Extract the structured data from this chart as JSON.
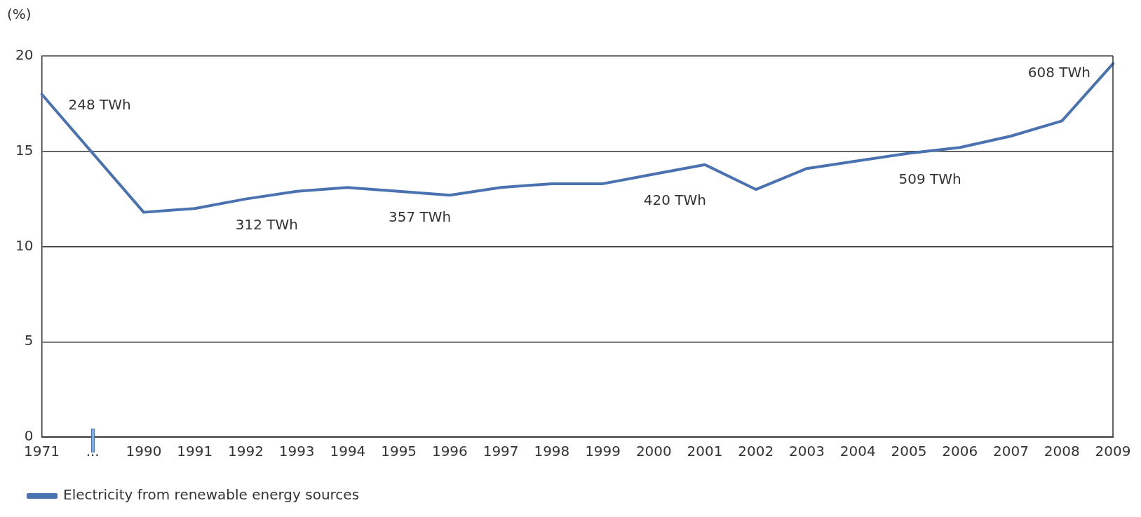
{
  "chart_data": {
    "type": "line",
    "ylabel": "(%)",
    "categories": [
      "1971",
      "...",
      "1990",
      "1991",
      "1992",
      "1993",
      "1994",
      "1995",
      "1996",
      "1997",
      "1998",
      "1999",
      "2000",
      "2001",
      "2002",
      "2003",
      "2004",
      "2005",
      "2006",
      "2007",
      "2008",
      "2009"
    ],
    "series": [
      {
        "name": "Electricity from renewable energy sources",
        "color": "#4a72b0",
        "values": [
          18.0,
          null,
          11.8,
          12.0,
          12.5,
          12.9,
          13.1,
          12.9,
          12.7,
          13.1,
          13.3,
          13.3,
          13.8,
          14.3,
          13.0,
          14.1,
          14.5,
          14.9,
          15.2,
          15.8,
          16.6,
          19.6
        ]
      }
    ],
    "ylim": [
      0,
      20
    ],
    "yticks": [
      0,
      5,
      10,
      15,
      20
    ],
    "grid": "y",
    "legend": "bottom left",
    "marker": "none",
    "line_style": "solid",
    "annotations": [
      {
        "text": "248 TWh",
        "x": "1971",
        "y": 18.0
      },
      {
        "text": "312 TWh",
        "x": "1992",
        "y": 12.5
      },
      {
        "text": "357 TWh",
        "x": "1995",
        "y": 12.9
      },
      {
        "text": "420 TWh",
        "x": "2000",
        "y": 13.8
      },
      {
        "text": "509 TWh",
        "x": "2005",
        "y": 14.9
      },
      {
        "text": "608 TWh",
        "x": "2009",
        "y": 19.6
      }
    ]
  }
}
